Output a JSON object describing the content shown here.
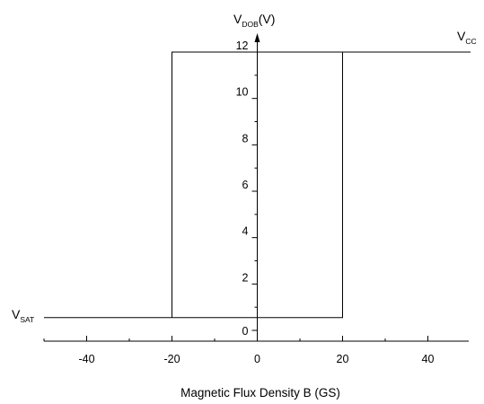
{
  "chart_data": {
    "type": "line",
    "xlabel": "Magnetic Flux Density B (GS)",
    "ylabel": {
      "main": "V",
      "sub": "DOB",
      "unit": "(V)"
    },
    "xlim": [
      -50,
      50
    ],
    "ylim": [
      -0.3,
      12.6
    ],
    "xticks": [
      -40,
      -20,
      0,
      20,
      40
    ],
    "xtick_labels": [
      "-40",
      "-20",
      "0",
      "20",
      "40"
    ],
    "yticks": [
      0,
      2,
      4,
      6,
      8,
      10,
      12
    ],
    "ytick_labels": [
      "0",
      "2",
      "4",
      "6",
      "8",
      "10",
      "12"
    ],
    "grid": false,
    "series": [
      {
        "x": [
          -50,
          -20,
          -20,
          20,
          20,
          -20,
          -20,
          50
        ],
        "y": [
          0.55,
          0.55,
          12,
          12,
          0.55,
          0.55,
          12,
          12
        ]
      }
    ],
    "annotations": [
      {
        "main": "V",
        "sub": "SAT",
        "x": -50,
        "y": 0.55,
        "anchor": "left"
      },
      {
        "main": "V",
        "sub": "CC",
        "x": 50,
        "y": 12,
        "anchor": "right"
      }
    ]
  }
}
